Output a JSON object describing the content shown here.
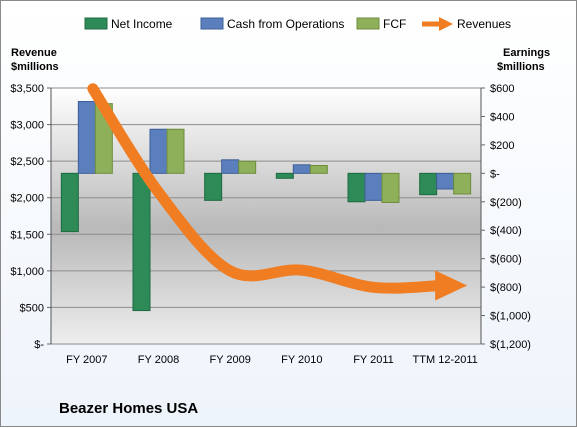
{
  "chart_data": {
    "type": "bar",
    "title": "Beazer Homes USA",
    "categories": [
      "FY 2007",
      "FY 2008",
      "FY 2009",
      "FY 2010",
      "FY 2011",
      "TTM 12-2011"
    ],
    "left_axis": {
      "label_line1": "Revenue",
      "label_line2": "$millions",
      "ylim": [
        0,
        3500
      ],
      "ticks": [
        0,
        500,
        1000,
        1500,
        2000,
        2500,
        3000,
        3500
      ],
      "tick_labels": [
        "$-",
        "$500",
        "$1,000",
        "$1,500",
        "$2,000",
        "$2,500",
        "$3,000",
        "$3,500"
      ]
    },
    "right_axis": {
      "label_line1": "Earnings",
      "label_line2": "$millions",
      "ylim": [
        -1200,
        600
      ],
      "ticks": [
        600,
        400,
        200,
        0,
        -200,
        -400,
        -600,
        -800,
        -1000,
        -1200
      ],
      "tick_labels": [
        "$600",
        "$400",
        "$200",
        "$-",
        "$(200)",
        "$(400)",
        "$(600)",
        "$(800)",
        "$(1,000)",
        "$(1,200)"
      ]
    },
    "series": [
      {
        "name": "Net Income",
        "axis": "right",
        "kind": "bar",
        "color": "#2e8b57",
        "values": [
          -410,
          -965,
          -190,
          -35,
          -200,
          -150
        ]
      },
      {
        "name": "Cash from Operations",
        "axis": "right",
        "kind": "bar",
        "color": "#5b7fbd",
        "values": [
          505,
          310,
          95,
          60,
          -190,
          -110
        ]
      },
      {
        "name": "FCF",
        "axis": "right",
        "kind": "bar",
        "color": "#8fb05a",
        "values": [
          490,
          310,
          85,
          55,
          -205,
          -145
        ]
      },
      {
        "name": "Revenues",
        "axis": "left",
        "kind": "line",
        "color": "#f07d22",
        "values": [
          3490,
          2075,
          1000,
          1010,
          775,
          800
        ]
      }
    ],
    "grid": true,
    "legend_position": "top"
  }
}
